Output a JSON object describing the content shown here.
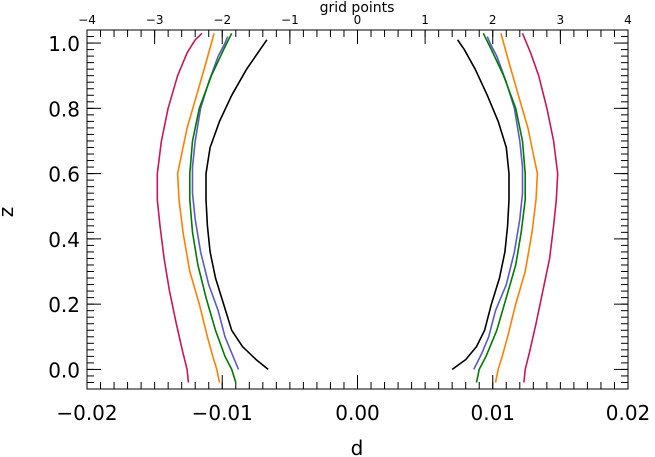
{
  "chart_data": {
    "type": "line",
    "xlabel": "d",
    "ylabel": "z",
    "top_xlabel": "grid points",
    "xlim": [
      -0.02,
      0.02
    ],
    "ylim": [
      -0.06,
      1.04
    ],
    "top_xlim": [
      -4,
      4
    ],
    "x_ticks": [
      -0.02,
      -0.01,
      0.0,
      0.01,
      0.02
    ],
    "x_tick_labels": [
      "−0.02",
      "−0.01",
      "0.00",
      "0.01",
      "0.02"
    ],
    "y_ticks": [
      0.0,
      0.2,
      0.4,
      0.6,
      0.8,
      1.0
    ],
    "y_tick_labels": [
      "0.0",
      "0.2",
      "0.4",
      "0.6",
      "0.8",
      "1.0"
    ],
    "top_ticks": [
      -4,
      -3,
      -2,
      -1,
      0,
      1,
      2,
      3,
      4
    ],
    "top_tick_labels": [
      "−4",
      "−3",
      "−2",
      "−1",
      "0",
      "1",
      "2",
      "3",
      "4"
    ],
    "grid": false,
    "series": [
      {
        "color": "#000000",
        "right": [
          [
            0.007,
            0.0
          ],
          [
            0.008,
            0.03
          ],
          [
            0.0088,
            0.07
          ],
          [
            0.0094,
            0.12
          ],
          [
            0.0099,
            0.2
          ],
          [
            0.0105,
            0.28
          ],
          [
            0.0109,
            0.36
          ],
          [
            0.0111,
            0.44
          ],
          [
            0.0112,
            0.52
          ],
          [
            0.0112,
            0.6
          ],
          [
            0.011,
            0.68
          ],
          [
            0.0104,
            0.76
          ],
          [
            0.0096,
            0.84
          ],
          [
            0.0087,
            0.92
          ],
          [
            0.0079,
            0.98
          ],
          [
            0.0074,
            1.01
          ]
        ],
        "left": [
          [
            -0.0066,
            0.0
          ],
          [
            -0.0075,
            0.03
          ],
          [
            -0.0085,
            0.07
          ],
          [
            -0.0093,
            0.12
          ],
          [
            -0.0099,
            0.2
          ],
          [
            -0.0105,
            0.28
          ],
          [
            -0.0109,
            0.36
          ],
          [
            -0.0111,
            0.44
          ],
          [
            -0.0112,
            0.52
          ],
          [
            -0.0112,
            0.6
          ],
          [
            -0.0109,
            0.68
          ],
          [
            -0.0102,
            0.76
          ],
          [
            -0.0093,
            0.84
          ],
          [
            -0.0082,
            0.92
          ],
          [
            -0.0072,
            0.98
          ],
          [
            -0.0067,
            1.01
          ]
        ]
      },
      {
        "color": "#5b5bc8",
        "right": [
          [
            0.0086,
            0.0
          ],
          [
            0.0092,
            0.05
          ],
          [
            0.0097,
            0.1
          ],
          [
            0.0102,
            0.18
          ],
          [
            0.011,
            0.26
          ],
          [
            0.0116,
            0.36
          ],
          [
            0.012,
            0.46
          ],
          [
            0.0122,
            0.54
          ],
          [
            0.0122,
            0.62
          ],
          [
            0.012,
            0.7
          ],
          [
            0.0116,
            0.8
          ],
          [
            0.011,
            0.88
          ],
          [
            0.0103,
            0.96
          ],
          [
            0.0098,
            1.0
          ],
          [
            0.0096,
            1.02
          ]
        ],
        "left": [
          [
            -0.0088,
            0.0
          ],
          [
            -0.0093,
            0.05
          ],
          [
            -0.0098,
            0.1
          ],
          [
            -0.0103,
            0.18
          ],
          [
            -0.011,
            0.26
          ],
          [
            -0.0116,
            0.36
          ],
          [
            -0.012,
            0.46
          ],
          [
            -0.0122,
            0.54
          ],
          [
            -0.0122,
            0.62
          ],
          [
            -0.012,
            0.7
          ],
          [
            -0.0116,
            0.8
          ],
          [
            -0.011,
            0.88
          ],
          [
            -0.0103,
            0.96
          ],
          [
            -0.0098,
            1.0
          ],
          [
            -0.0096,
            1.02
          ]
        ]
      },
      {
        "color": "#007a00",
        "right": [
          [
            0.0088,
            -0.04
          ],
          [
            0.009,
            0.0
          ],
          [
            0.0095,
            0.04
          ],
          [
            0.0103,
            0.12
          ],
          [
            0.011,
            0.22
          ],
          [
            0.0117,
            0.32
          ],
          [
            0.0121,
            0.42
          ],
          [
            0.0124,
            0.52
          ],
          [
            0.0124,
            0.6
          ],
          [
            0.0122,
            0.7
          ],
          [
            0.0117,
            0.8
          ],
          [
            0.0108,
            0.9
          ],
          [
            0.0099,
            0.98
          ],
          [
            0.0093,
            1.03
          ]
        ],
        "left": [
          [
            -0.009,
            -0.04
          ],
          [
            -0.0093,
            0.0
          ],
          [
            -0.0098,
            0.04
          ],
          [
            -0.0105,
            0.12
          ],
          [
            -0.0112,
            0.22
          ],
          [
            -0.0118,
            0.32
          ],
          [
            -0.0122,
            0.42
          ],
          [
            -0.0124,
            0.52
          ],
          [
            -0.0124,
            0.6
          ],
          [
            -0.0122,
            0.7
          ],
          [
            -0.0117,
            0.8
          ],
          [
            -0.0108,
            0.9
          ],
          [
            -0.0099,
            0.98
          ],
          [
            -0.0093,
            1.03
          ]
        ]
      },
      {
        "color": "#ff8000",
        "right": [
          [
            0.0102,
            -0.04
          ],
          [
            0.0104,
            0.0
          ],
          [
            0.0107,
            0.04
          ],
          [
            0.0111,
            0.1
          ],
          [
            0.0117,
            0.2
          ],
          [
            0.0124,
            0.3
          ],
          [
            0.0129,
            0.42
          ],
          [
            0.0132,
            0.52
          ],
          [
            0.0133,
            0.6
          ],
          [
            0.013,
            0.66
          ],
          [
            0.0126,
            0.74
          ],
          [
            0.0119,
            0.84
          ],
          [
            0.0112,
            0.94
          ],
          [
            0.0106,
            1.03
          ]
        ],
        "left": [
          [
            -0.0102,
            -0.04
          ],
          [
            -0.0104,
            0.0
          ],
          [
            -0.0107,
            0.04
          ],
          [
            -0.0111,
            0.1
          ],
          [
            -0.0117,
            0.2
          ],
          [
            -0.0124,
            0.3
          ],
          [
            -0.0129,
            0.42
          ],
          [
            -0.0132,
            0.52
          ],
          [
            -0.0133,
            0.6
          ],
          [
            -0.013,
            0.66
          ],
          [
            -0.0126,
            0.74
          ],
          [
            -0.0119,
            0.84
          ],
          [
            -0.0112,
            0.94
          ],
          [
            -0.0106,
            1.03
          ]
        ]
      },
      {
        "color": "#c8165c",
        "right": [
          [
            0.0123,
            -0.04
          ],
          [
            0.0124,
            0.0
          ],
          [
            0.0127,
            0.05
          ],
          [
            0.0132,
            0.14
          ],
          [
            0.0137,
            0.24
          ],
          [
            0.0142,
            0.34
          ],
          [
            0.0145,
            0.44
          ],
          [
            0.0147,
            0.52
          ],
          [
            0.0148,
            0.6
          ],
          [
            0.0145,
            0.7
          ],
          [
            0.014,
            0.8
          ],
          [
            0.0134,
            0.9
          ],
          [
            0.0128,
            0.97
          ],
          [
            0.0124,
            1.01
          ],
          [
            0.0122,
            1.03
          ]
        ],
        "left": [
          [
            -0.0125,
            -0.04
          ],
          [
            -0.0126,
            0.0
          ],
          [
            -0.0129,
            0.05
          ],
          [
            -0.0134,
            0.14
          ],
          [
            -0.0139,
            0.24
          ],
          [
            -0.0143,
            0.34
          ],
          [
            -0.0146,
            0.44
          ],
          [
            -0.0148,
            0.52
          ],
          [
            -0.0148,
            0.6
          ],
          [
            -0.0145,
            0.7
          ],
          [
            -0.014,
            0.8
          ],
          [
            -0.0133,
            0.9
          ],
          [
            -0.0126,
            0.97
          ],
          [
            -0.012,
            1.01
          ],
          [
            -0.0115,
            1.03
          ]
        ]
      }
    ]
  }
}
